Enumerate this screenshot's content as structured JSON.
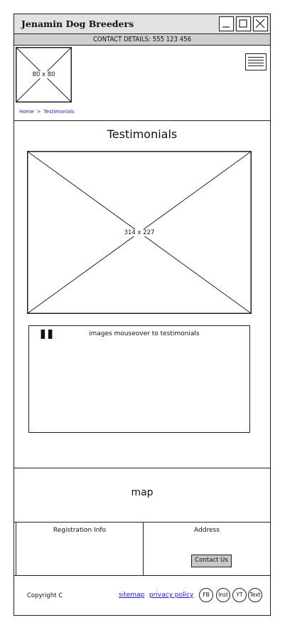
{
  "window": {
    "title": "Jenamin Dog Breeders"
  },
  "contact_bar": {
    "text": "CONTACT DETAILS: 555 123 456"
  },
  "logo": {
    "placeholder": "80 x 80"
  },
  "breadcrumb": {
    "home": "Home",
    "separator": ">",
    "current": "Testimonials"
  },
  "page": {
    "title": "Testimonials"
  },
  "main_image": {
    "placeholder": "314 x 227"
  },
  "testimonial": {
    "quote_mark": "\"",
    "text": "images mouseover to testimonials"
  },
  "map": {
    "label": "map"
  },
  "footer": {
    "registration_label": "Registration Info",
    "address_label": "Address",
    "contact_button": "Contact Us",
    "copyright": "Copyright C",
    "sitemap": "sitemap",
    "privacy_policy": "privacy policy",
    "social": [
      "FB",
      "Inst",
      "YT",
      "Text"
    ]
  },
  "colors": {
    "link": "#1a1ad0",
    "titlebar": "#e2e2e2",
    "contact_bar": "#cfcfcf",
    "button": "#c8c8c8"
  }
}
